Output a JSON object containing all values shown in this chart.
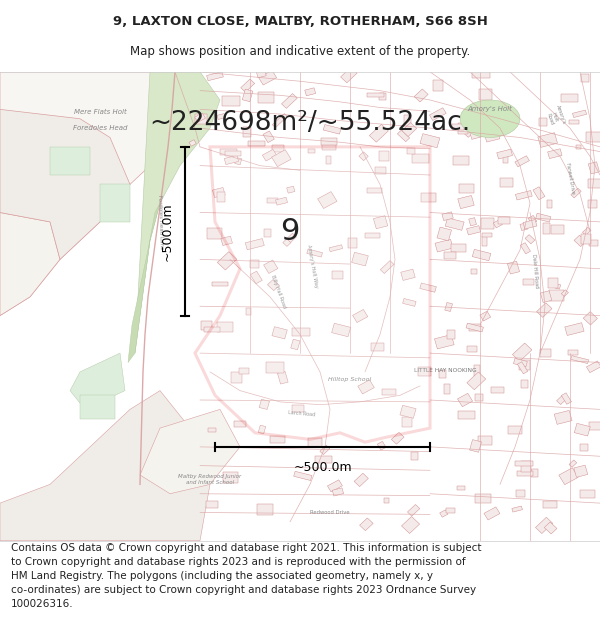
{
  "title_line1": "9, LAXTON CLOSE, MALTBY, ROTHERHAM, S66 8SH",
  "title_line2": "Map shows position and indicative extent of the property.",
  "area_text": "~224698m²/~55.524ac.",
  "label_9": "9",
  "scale_label_v": "~500.0m",
  "scale_label_h": "~500.0m",
  "footer_text": "Contains OS data © Crown copyright and database right 2021. This information is subject\nto Crown copyright and database rights 2023 and is reproduced with the permission of\nHM Land Registry. The polygons (including the associated geometry, namely x, y\nco-ordinates) are subject to Crown copyright and database rights 2023 Ordnance Survey\n100026316.",
  "outline_color": "#dd0000",
  "title_fontsize": 9.5,
  "subtitle_fontsize": 8.5,
  "area_fontsize": 19,
  "label_fontsize": 22,
  "scale_fontsize": 9,
  "footer_fontsize": 7.5,
  "figure_width": 6.0,
  "figure_height": 6.25,
  "white_bg": "#ffffff",
  "map_bg": "#f8f5f0",
  "text_color": "#222222",
  "road_color": "#d9a0a0",
  "building_edge": "#d09090",
  "building_face": "#f5eaea",
  "green1": "#d8e8c8",
  "green2": "#c8dcb4",
  "green3": "#ddeedd"
}
